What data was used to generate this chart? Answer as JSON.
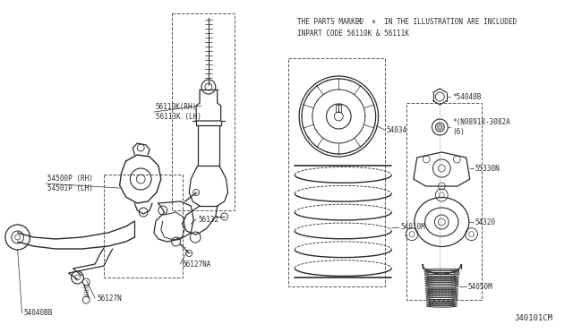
{
  "bg_color": "#ffffff",
  "line_color": "#2a2a2a",
  "title_line1": "THE PARTS MARKED  ×  IN THE ILLUSTRATION ARE INCLUDED",
  "title_line2": "INPART CODE 56110K & 56111K",
  "diagram_id": "J40101CM",
  "figsize": [
    6.4,
    3.72
  ],
  "dpi": 100
}
